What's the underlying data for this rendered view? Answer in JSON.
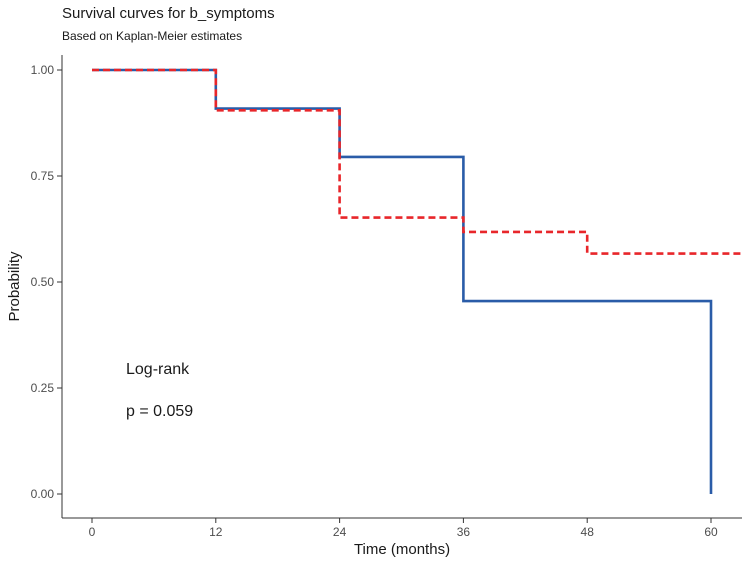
{
  "chart_data": {
    "type": "line",
    "title": "Survival curves for b_symptoms",
    "subtitle": "Based on Kaplan-Meier estimates",
    "xlabel": "Time (months)",
    "ylabel": "Probability",
    "xlim": [
      0,
      63
    ],
    "ylim": [
      0,
      1
    ],
    "x_ticks": [
      0,
      12,
      24,
      36,
      48,
      60
    ],
    "x_tick_labels": [
      "0",
      "12",
      "24",
      "36",
      "48",
      "60"
    ],
    "y_ticks": [
      0,
      0.25,
      0.5,
      0.75,
      1.0
    ],
    "y_tick_labels": [
      "0.00",
      "0.25",
      "0.50",
      "0.75",
      "1.00"
    ],
    "grid": false,
    "step": true,
    "series": [
      {
        "color": "#2a5ca8",
        "dash": "solid",
        "x": [
          0,
          12,
          24,
          36,
          60
        ],
        "y": [
          1.0,
          0.909,
          0.795,
          0.455,
          0.0
        ]
      },
      {
        "color": "#e8262a",
        "dash": "dashed",
        "x": [
          0,
          12,
          24,
          36,
          48
        ],
        "y": [
          1.0,
          0.905,
          0.652,
          0.618,
          0.567
        ],
        "x_end": 63
      }
    ],
    "annotations": [
      "Log-rank",
      "p = 0.059"
    ]
  }
}
